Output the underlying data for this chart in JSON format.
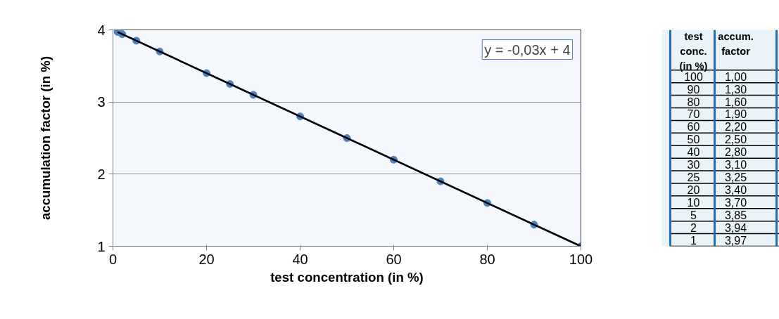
{
  "chart_data": {
    "type": "line",
    "xlabel": "test concentration (in %)",
    "ylabel": "accumulation factor (in %)",
    "x": [
      100,
      90,
      80,
      70,
      60,
      50,
      40,
      30,
      25,
      20,
      10,
      5,
      2,
      1
    ],
    "series": [
      {
        "marker": "circle",
        "color": "#4f81bd",
        "values": [
          1.0,
          1.3,
          1.6,
          1.9,
          2.2,
          2.5,
          2.8,
          3.1,
          3.25,
          3.4,
          3.7,
          3.85,
          3.94,
          3.97
        ]
      },
      {
        "type": "line",
        "marker": "none",
        "color": "#000000",
        "x": [
          1,
          100
        ],
        "values": [
          3.97,
          1.0
        ]
      }
    ],
    "xlim": [
      0,
      100
    ],
    "xticks": [
      0,
      20,
      40,
      60,
      80,
      100
    ],
    "ylim": [
      1,
      4
    ],
    "yticks": [
      1,
      2,
      3,
      4
    ],
    "grid": "y",
    "annotations": [
      "y = -0,03x + 4",
      "test\nconc.\n(in %)",
      "accum.\nfactor",
      "100",
      "1,00",
      "90",
      "1,30",
      "80",
      "1,60",
      "70",
      "1,90",
      "60",
      "2,20",
      "50",
      "2,50",
      "40",
      "2,80",
      "30",
      "3,10",
      "25",
      "3,25",
      "20",
      "3,40",
      "10",
      "3,70",
      "5",
      "3,85",
      "2",
      "3,94",
      "1",
      "3,97"
    ]
  }
}
